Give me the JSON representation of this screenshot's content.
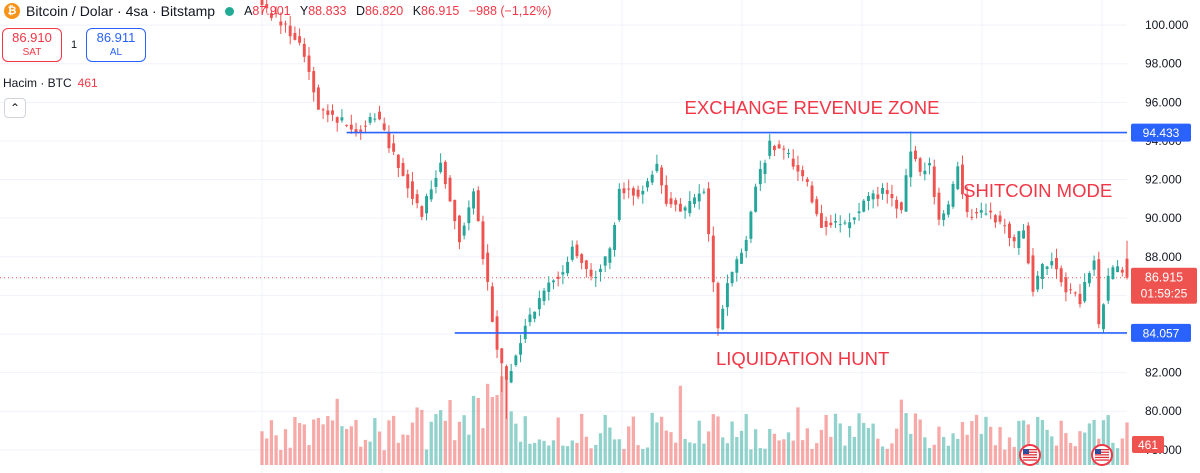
{
  "header": {
    "coin_icon": "₿",
    "symbol": "Bitcoin / Dolar · 4sa · Bitstamp",
    "ohlc": {
      "o_label": "A",
      "open": "87.901",
      "h_label": "Y",
      "high": "88.833",
      "l_label": "D",
      "low": "86.820",
      "c_label": "K",
      "close": "86.915",
      "change": "−988 (−1,12%)"
    }
  },
  "trade": {
    "sell_price": "86.910",
    "sell_label": "SAT",
    "spread": "1",
    "buy_price": "86.911",
    "buy_label": "AL"
  },
  "volume": {
    "label": "Hacim · BTC",
    "value": "461"
  },
  "collapse_icon": "⌃",
  "colors": {
    "up": "#26a69a",
    "down": "#ef5350",
    "line": "#2962ff",
    "annot": "#f23645",
    "grid": "#f0f3fa"
  },
  "chart_data": {
    "type": "candlestick",
    "ylim": [
      76800,
      101300
    ],
    "y_ticks": [
      {
        "value": 78000,
        "label": "78.000"
      },
      {
        "value": 80000,
        "label": "80.000"
      },
      {
        "value": 82000,
        "label": "82.000"
      },
      {
        "value": 84000,
        "label": "84.000"
      },
      {
        "value": 86000,
        "label": "86.000"
      },
      {
        "value": 88000,
        "label": "88.000"
      },
      {
        "value": 90000,
        "label": "90.000"
      },
      {
        "value": 92000,
        "label": "92.000"
      },
      {
        "value": 94000,
        "label": "94.000"
      },
      {
        "value": 96000,
        "label": "96.000"
      },
      {
        "value": 98000,
        "label": "98.000"
      },
      {
        "value": 100000,
        "label": "100.000"
      }
    ],
    "waypoints": [
      [
        0,
        101000
      ],
      [
        8,
        99200
      ],
      [
        12,
        95800
      ],
      [
        20,
        94500
      ],
      [
        24,
        95400
      ],
      [
        28,
        93300
      ],
      [
        34,
        90200
      ],
      [
        38,
        93000
      ],
      [
        42,
        89000
      ],
      [
        45,
        91300
      ],
      [
        48,
        86500
      ],
      [
        50,
        83200
      ],
      [
        52,
        81600
      ],
      [
        56,
        84500
      ],
      [
        60,
        86300
      ],
      [
        64,
        87300
      ],
      [
        66,
        88600
      ],
      [
        70,
        86800
      ],
      [
        74,
        88200
      ],
      [
        76,
        91500
      ],
      [
        80,
        91300
      ],
      [
        84,
        92700
      ],
      [
        86,
        90900
      ],
      [
        90,
        90400
      ],
      [
        94,
        91600
      ],
      [
        96,
        86500
      ],
      [
        97,
        84300
      ],
      [
        99,
        86500
      ],
      [
        103,
        88800
      ],
      [
        105,
        91600
      ],
      [
        108,
        93800
      ],
      [
        112,
        93200
      ],
      [
        116,
        91700
      ],
      [
        119,
        89700
      ],
      [
        124,
        89600
      ],
      [
        128,
        90800
      ],
      [
        132,
        91400
      ],
      [
        136,
        90400
      ],
      [
        138,
        93600
      ],
      [
        140,
        92400
      ],
      [
        142,
        92800
      ],
      [
        144,
        89800
      ],
      [
        146,
        90600
      ],
      [
        148,
        92700
      ],
      [
        150,
        90100
      ],
      [
        154,
        90400
      ],
      [
        158,
        89600
      ],
      [
        160,
        88600
      ],
      [
        162,
        89600
      ],
      [
        164,
        86200
      ],
      [
        166,
        87500
      ],
      [
        168,
        87800
      ],
      [
        171,
        86400
      ],
      [
        174,
        85700
      ],
      [
        177,
        88000
      ],
      [
        178,
        84400
      ],
      [
        180,
        87000
      ],
      [
        182,
        87500
      ],
      [
        184,
        86915
      ]
    ],
    "volume_series": {
      "name": "Hacim",
      "range": [
        0,
        6000
      ]
    },
    "last": {
      "value": 86915,
      "label": "86.915",
      "countdown": "01:59:25"
    },
    "volume_last": "461",
    "levels": [
      {
        "value": 94433,
        "label": "94.433",
        "x_start": 18,
        "x_end": 184
      },
      {
        "value": 84057,
        "label": "84.057",
        "x_start": 41,
        "x_end": 184
      }
    ],
    "annotations": [
      {
        "text": "EXCHANGE REVENUE ZONE",
        "at": [
          117,
          95400
        ]
      },
      {
        "text": "SHITCOIN MODE",
        "at": [
          165,
          91100
        ]
      },
      {
        "text": "LIQUIDATION HUNT",
        "at": [
          115,
          82400
        ]
      }
    ]
  }
}
